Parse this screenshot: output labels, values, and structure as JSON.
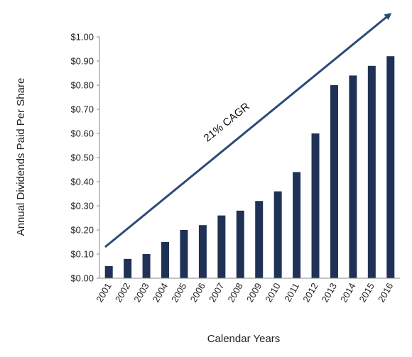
{
  "chart_data": {
    "type": "bar",
    "title": "",
    "xlabel": "Calendar Years",
    "ylabel": "Annual Dividends Paid Per Share",
    "categories": [
      "2001",
      "2002",
      "2003",
      "2004",
      "2005",
      "2006",
      "2007",
      "2008",
      "2009",
      "2010",
      "2011",
      "2012",
      "2013",
      "2014",
      "2015",
      "2016"
    ],
    "values": [
      0.05,
      0.08,
      0.1,
      0.15,
      0.2,
      0.22,
      0.26,
      0.28,
      0.32,
      0.36,
      0.44,
      0.6,
      0.8,
      0.84,
      0.88,
      0.92
    ],
    "ylim": [
      0,
      1.0
    ],
    "yticks": [
      "$0.00",
      "$0.10",
      "$0.20",
      "$0.30",
      "$0.40",
      "$0.50",
      "$0.60",
      "$0.70",
      "$0.80",
      "$0.90",
      "$1.00"
    ],
    "grid": false,
    "legend": "none",
    "annotation": "21% CAGR",
    "bar_color": "#1f3256",
    "arrow_color": "#2b4a7a"
  }
}
